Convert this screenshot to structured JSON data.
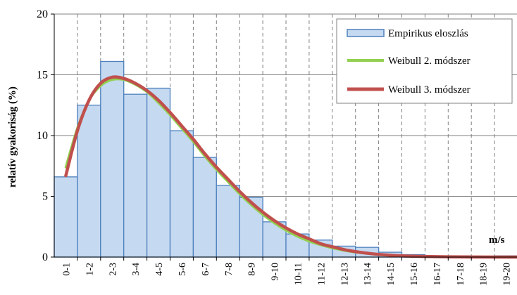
{
  "chart_data": {
    "type": "bar",
    "title": "",
    "xlabel": "m/s",
    "ylabel": "relatív gyakoriság (%)",
    "ylim": [
      0,
      20
    ],
    "yticks": [
      0,
      5,
      10,
      15,
      20
    ],
    "grid": "vertical dashed lines at category boundaries, horizontal solid at y ticks",
    "legend_position": "top-right",
    "categories": [
      "0-1",
      "1-2",
      "2-3",
      "3-4",
      "4-5",
      "5-6",
      "6-7",
      "7-8",
      "8-9",
      "9-10",
      "10-11",
      "11-12",
      "12-13",
      "13-14",
      "14-15",
      "15-16",
      "16-17",
      "17-18",
      "18-19",
      "19-20"
    ],
    "series": [
      {
        "name": "Empirikus eloszlás",
        "kind": "bar",
        "color": "#c5d9f1",
        "edge_color": "#4f81bd",
        "values": [
          6.6,
          12.5,
          16.1,
          13.4,
          13.9,
          10.4,
          8.2,
          5.9,
          4.9,
          2.9,
          1.9,
          1.4,
          0.9,
          0.8,
          0.4,
          0.2,
          0.1,
          0.1,
          0.05,
          0.1
        ]
      },
      {
        "name": "Weibull 2. módszer",
        "kind": "line",
        "color": "#92d050",
        "x": [
          0.5,
          1.0,
          1.5,
          2.0,
          2.5,
          3.0,
          3.5,
          4.0,
          4.5,
          5.0,
          5.5,
          6.0,
          6.5,
          7.0,
          7.5,
          8.0,
          8.5,
          9.0,
          9.5,
          10.0,
          10.5,
          11.0,
          11.5,
          12.0,
          12.5,
          13.0,
          13.5,
          14.0,
          15.0,
          16.0,
          17.0,
          18.0,
          19.0,
          20.0
        ],
        "values": [
          7.4,
          10.6,
          12.9,
          14.1,
          14.6,
          14.6,
          14.2,
          13.6,
          12.7,
          11.7,
          10.6,
          9.5,
          8.3,
          7.2,
          6.2,
          5.2,
          4.3,
          3.5,
          2.8,
          2.2,
          1.7,
          1.3,
          1.0,
          0.75,
          0.55,
          0.4,
          0.3,
          0.2,
          0.1,
          0.05,
          0.02,
          0.01,
          0.0,
          0.0
        ]
      },
      {
        "name": "Weibull 3. módszer",
        "kind": "line",
        "color": "#c0504d",
        "x": [
          0.5,
          1.0,
          1.5,
          2.0,
          2.5,
          3.0,
          3.5,
          4.0,
          4.5,
          5.0,
          5.5,
          6.0,
          6.5,
          7.0,
          7.5,
          8.0,
          8.5,
          9.0,
          9.5,
          10.0,
          10.5,
          11.0,
          11.5,
          12.0,
          12.5,
          13.0,
          13.5,
          14.0,
          15.0,
          16.0,
          17.0,
          18.0,
          19.0,
          20.0
        ],
        "values": [
          6.7,
          10.4,
          12.9,
          14.3,
          14.8,
          14.7,
          14.3,
          13.7,
          12.9,
          11.9,
          10.8,
          9.7,
          8.5,
          7.4,
          6.4,
          5.4,
          4.5,
          3.7,
          3.0,
          2.4,
          1.9,
          1.5,
          1.1,
          0.85,
          0.62,
          0.45,
          0.32,
          0.22,
          0.1,
          0.05,
          0.02,
          0.01,
          0.0,
          0.0
        ]
      }
    ]
  }
}
